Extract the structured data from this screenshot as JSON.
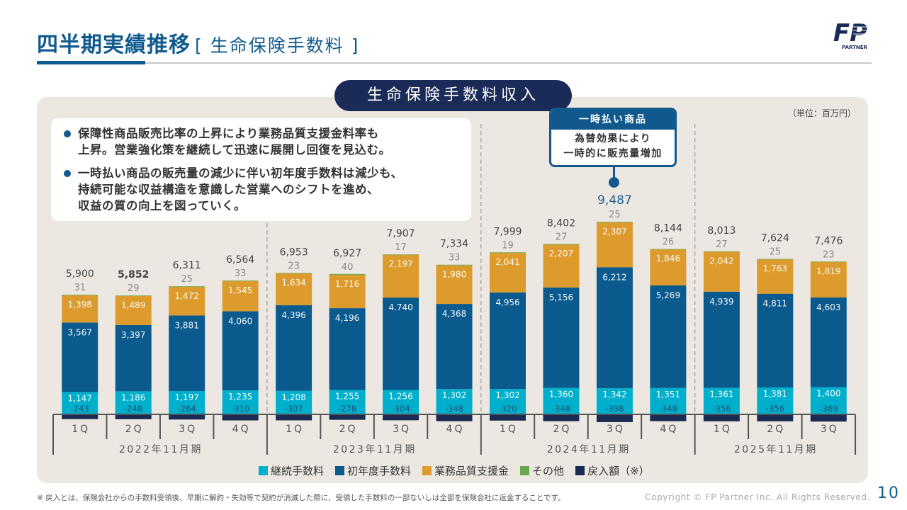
{
  "header": {
    "title": "四半期実績推移",
    "subtitle": "[ 生命保険手数料 ]"
  },
  "logo": {
    "mark": "FP",
    "name": "PARTNER"
  },
  "panel": {
    "title": "生命保険手数料収入",
    "unit": "（単位：百万円）"
  },
  "notes": [
    [
      "保障性商品販売比率の上昇により業務品質支援金料率も",
      "上昇。営業強化策を継続して迅速に展開し回復を見込む。"
    ],
    [
      "一時払い商品の販売量の減少に伴い初年度手数料は減少も、",
      "持続可能な収益構造を意識した営業へのシフトを進め、",
      "収益の質の向上を図っていく。"
    ]
  ],
  "chart_data": {
    "type": "bar",
    "stacked": true,
    "title": "生命保険手数料収入",
    "unit": "百万円",
    "xlabel": "",
    "ylabel": "",
    "categories": [
      "1Q",
      "2Q",
      "3Q",
      "4Q",
      "1Q",
      "2Q",
      "3Q",
      "4Q",
      "1Q",
      "2Q",
      "3Q",
      "4Q",
      "1Q",
      "2Q",
      "3Q"
    ],
    "groups": [
      {
        "label": "2022年11月期",
        "count": 4
      },
      {
        "label": "2023年11月期",
        "count": 4
      },
      {
        "label": "2024年11月期",
        "count": 4
      },
      {
        "label": "2025年11月期",
        "count": 3
      }
    ],
    "series": [
      {
        "name": "継続手数料",
        "color": "#00afcc",
        "values": [
          1147,
          1186,
          1197,
          1235,
          1208,
          1255,
          1256,
          1302,
          1302,
          1360,
          1342,
          1351,
          1361,
          1381,
          1400
        ]
      },
      {
        "name": "初年度手数料",
        "color": "#0b5a8e",
        "values": [
          3567,
          3397,
          3881,
          4060,
          4396,
          4196,
          4740,
          4368,
          4956,
          5156,
          6212,
          5269,
          4939,
          4811,
          4603
        ],
        "label_overrides": {
          "6": "4.740"
        }
      },
      {
        "name": "業務品質支援金",
        "color": "#dc9b2c",
        "values": [
          1398,
          1489,
          1472,
          1545,
          1634,
          1716,
          2197,
          1980,
          2041,
          2207,
          2307,
          1846,
          2042,
          1763,
          1819
        ]
      },
      {
        "name": "その他",
        "color": "#6aa84f",
        "values": [
          31,
          29,
          25,
          33,
          23,
          40,
          17,
          33,
          19,
          27,
          25,
          26,
          27,
          25,
          23
        ]
      },
      {
        "name": "戻入額（※）",
        "color": "#1b2a52",
        "values": [
          -243,
          -248,
          -264,
          -310,
          -307,
          -278,
          -304,
          -348,
          -320,
          -348,
          -398,
          -348,
          -356,
          -356,
          -369
        ]
      }
    ],
    "totals": [
      5900,
      5852,
      6311,
      6564,
      6953,
      6927,
      7907,
      7334,
      7999,
      8402,
      9487,
      8144,
      8013,
      7624,
      7476
    ],
    "bold_totals": [
      1
    ],
    "highlight_index": 10,
    "annotation": {
      "title": "一時払い商品",
      "lines": [
        "為替効果により",
        "一時的に販売量増加"
      ]
    },
    "legend": "bottom",
    "grid": false
  },
  "footer": {
    "footnote": "※ 戻入とは、保険会社からの手数料受領後、早期に解約・失効等で契約が消滅した際に、受領した手数料の一部ないしは全部を保険会社に返金することです。",
    "copyright": "Copyright © FP Partner Inc. All Rights Reserved.",
    "page": "10"
  }
}
